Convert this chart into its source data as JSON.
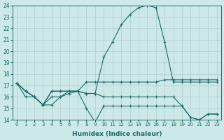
{
  "xlabel": "Humidex (Indice chaleur)",
  "xlim": [
    -0.5,
    23.5
  ],
  "ylim": [
    14,
    24
  ],
  "xticks": [
    0,
    1,
    2,
    3,
    4,
    5,
    6,
    7,
    8,
    9,
    10,
    11,
    12,
    13,
    14,
    15,
    16,
    17,
    18,
    19,
    20,
    21,
    22,
    23
  ],
  "yticks": [
    14,
    15,
    16,
    17,
    18,
    19,
    20,
    21,
    22,
    23,
    24
  ],
  "bg_color": "#cde8e8",
  "line_color": "#1a6b6b",
  "grid_color": "#b0cccc",
  "series": [
    {
      "x": [
        0,
        1,
        2,
        3,
        4,
        5,
        6,
        7,
        8,
        9,
        10,
        11,
        12,
        13,
        14,
        15,
        16,
        17,
        18,
        19,
        20,
        21,
        22,
        23
      ],
      "y": [
        17.2,
        16.5,
        16.0,
        15.3,
        16.5,
        16.5,
        16.5,
        16.5,
        16.3,
        16.3,
        19.5,
        20.8,
        22.3,
        23.2,
        23.8,
        24.0,
        23.8,
        20.8,
        17.3,
        17.3,
        17.3,
        17.3,
        17.3,
        17.3
      ]
    },
    {
      "x": [
        0,
        1,
        2,
        3,
        4,
        5,
        6,
        7,
        8,
        9,
        10,
        11,
        12,
        13,
        14,
        15,
        16,
        17,
        18,
        19,
        20,
        21,
        22,
        23
      ],
      "y": [
        17.2,
        16.5,
        16.0,
        15.3,
        16.5,
        16.5,
        16.5,
        16.5,
        17.3,
        17.3,
        17.3,
        17.3,
        17.3,
        17.3,
        17.3,
        17.3,
        17.3,
        17.5,
        17.5,
        17.5,
        17.5,
        17.5,
        17.5,
        17.5
      ]
    },
    {
      "x": [
        0,
        1,
        2,
        3,
        4,
        5,
        6,
        7,
        8,
        9,
        10,
        11,
        12,
        13,
        14,
        15,
        16,
        17,
        18,
        19,
        20,
        21,
        22,
        23
      ],
      "y": [
        17.2,
        16.0,
        16.0,
        15.3,
        15.3,
        16.0,
        16.3,
        16.5,
        16.3,
        16.3,
        16.0,
        16.0,
        16.0,
        16.0,
        16.0,
        16.0,
        16.0,
        16.0,
        16.0,
        15.2,
        14.2,
        14.0,
        14.5,
        14.5
      ]
    },
    {
      "x": [
        0,
        1,
        2,
        3,
        4,
        5,
        6,
        7,
        8,
        9,
        10,
        11,
        12,
        13,
        14,
        15,
        16,
        17,
        18,
        19,
        20,
        21,
        22,
        23
      ],
      "y": [
        17.2,
        16.5,
        16.0,
        15.3,
        16.0,
        16.0,
        16.5,
        16.5,
        15.0,
        13.8,
        15.2,
        15.2,
        15.2,
        15.2,
        15.2,
        15.2,
        15.2,
        15.2,
        15.2,
        15.2,
        14.2,
        14.0,
        14.5,
        14.5
      ]
    }
  ]
}
